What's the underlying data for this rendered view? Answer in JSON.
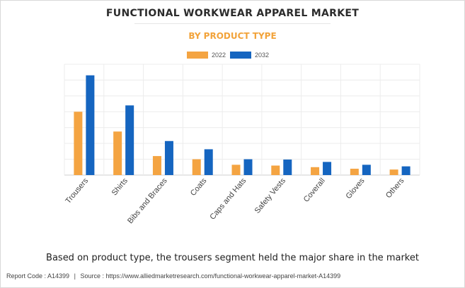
{
  "title": "FUNCTIONAL WORKWEAR APPAREL MARKET",
  "subtitle": "BY PRODUCT TYPE",
  "caption": "Based on product type, the trousers segment held the major share in the market",
  "footer": {
    "report_code": "Report Code : A14399",
    "separator": "|",
    "source": "Source : https://www.alliedmarketresearch.com/functional-workwear-apparel-market-A14399"
  },
  "chart_data": {
    "type": "bar",
    "categories": [
      "Trousers",
      "Shirts",
      "Bibs and Braces",
      "Coats",
      "Caps and Hats",
      "Safety Vests",
      "Coverall",
      "Gloves",
      "Others"
    ],
    "series": [
      {
        "name": "2022",
        "color": "#f4a442",
        "values": [
          40,
          27.5,
          12,
          10,
          6.5,
          6,
          5,
          4,
          3.5
        ]
      },
      {
        "name": "2032",
        "color": "#1565c0",
        "values": [
          63,
          44,
          21.5,
          16.3,
          10,
          9.8,
          8.3,
          6.5,
          5.5
        ]
      }
    ],
    "ylim": [
      0,
      70
    ],
    "grid": true,
    "y_tick_labels_shown": false,
    "legend_position": "top-center"
  }
}
